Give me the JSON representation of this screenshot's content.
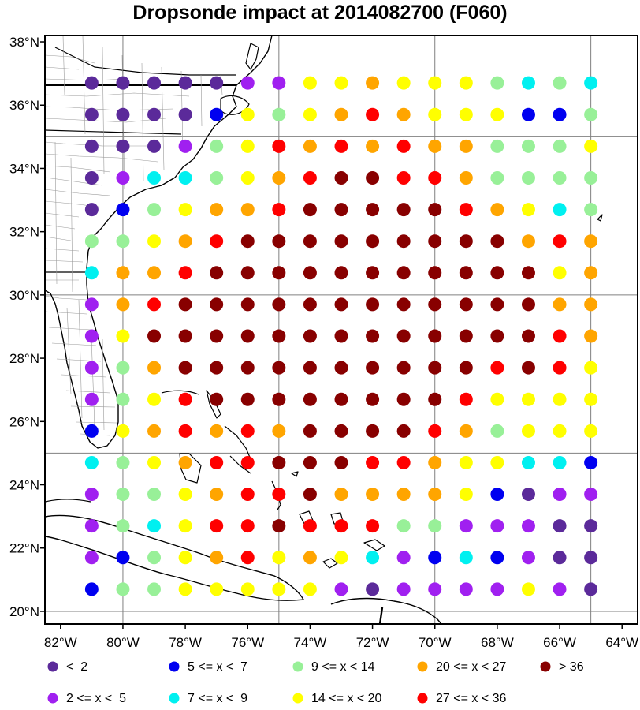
{
  "title": "Dropsonde impact at 2014082700 (F060)",
  "axes": {
    "lat_labels": [
      "20°N",
      "22°N",
      "24°N",
      "26°N",
      "28°N",
      "30°N",
      "32°N",
      "34°N",
      "36°N",
      "38°N"
    ],
    "lon_labels": [
      "82°W",
      "80°W",
      "78°W",
      "76°W",
      "74°W",
      "72°W",
      "70°W",
      "68°W",
      "66°W",
      "64°W"
    ]
  },
  "colors": {
    "c0": "#5b2a9a",
    "c1": "#a020f0",
    "c2": "#0000f0",
    "c3": "#00f0f0",
    "c4": "#98f098",
    "c5": "#ffff00",
    "c6": "#ffa500",
    "c7": "#ff0000",
    "c8": "#880000"
  },
  "legend": [
    {
      "cls": "c0",
      "label": "<  2"
    },
    {
      "cls": "c2",
      "label": "5 <= x <  7"
    },
    {
      "cls": "c4",
      "label": "9 <= x < 14"
    },
    {
      "cls": "c6",
      "label": "20 <= x < 27"
    },
    {
      "cls": "c8",
      "label": "> 36"
    },
    {
      "cls": "c1",
      "label": "2 <= x <  5"
    },
    {
      "cls": "c3",
      "label": "7 <= x <  9"
    },
    {
      "cls": "c5",
      "label": "14 <= x < 20"
    },
    {
      "cls": "c7",
      "label": "27 <= x < 36"
    }
  ],
  "chart_data": {
    "type": "scatter",
    "title": "Dropsonde impact at 2014082700 (F060)",
    "lon_range": [
      -82.5,
      -63.5
    ],
    "lat_range": [
      19.6,
      38.2
    ],
    "grid_lons": [
      -81,
      -80,
      -79,
      -78,
      -77,
      -76,
      -75,
      -74,
      -73,
      -72,
      -71,
      -70,
      -69,
      -68,
      -67,
      -66,
      -65
    ],
    "grid_lats": [
      36.7,
      35.7,
      34.7,
      33.7,
      32.7,
      31.7,
      30.7,
      29.7,
      28.7,
      27.7,
      26.7,
      25.7,
      24.7,
      23.7,
      22.7,
      21.7,
      20.7
    ],
    "classes_by_row": [
      "c0 c0 c0 c0 c0 c1 c1 c5 c5 c6 c5 c5 c5 c4 c3 c4 c3",
      "c0 c0 c0 c0 c2 c5 c4 c5 c6 c7 c6 c5 c5 c5 c2 c2 c4",
      "c0 c0 c0 c1 c4 c5 c7 c6 c7 c6 c7 c6 c6 c4 c4 c4 c5",
      "c0 c1 c3 c3 c4 c5 c6 c7 c8 c8 c7 c7 c6 c4 c4 c4 c4",
      "c0 c2 c4 c5 c6 c6 c7 c8 c8 c8 c8 c8 c7 c6 c5 c3 c4",
      "c4 c4 c5 c6 c7 c8 c8 c8 c8 c8 c8 c8 c8 c8 c6 c7 c6",
      "c3 c6 c6 c7 c8 c8 c8 c8 c8 c8 c8 c8 c8 c8 c8 c5 c6",
      "c1 c6 c7 c8 c8 c8 c8 c8 c8 c8 c8 c8 c8 c8 c8 c6 c6",
      "c1 c5 c8 c8 c8 c8 c8 c8 c8 c8 c8 c8 c8 c8 c8 c7 c6",
      "c1 c4 c6 c8 c8 c8 c8 c8 c8 c8 c8 c8 c8 c7 c8 c7 c5",
      "c1 c4 c5 c7 c8 c8 c8 c8 c8 c8 c8 c8 c7 c5 c5 c5 c5",
      "c2 c5 c6 c7 c6 c7 c6 c8 c8 c8 c8 c7 c6 c4 c5 c5 c5",
      "c3 c4 c5 c6 c7 c7 c8 c8 c8 c7 c7 c6 c5 c5 c3 c3 c2",
      "c1 c4 c4 c5 c6 c7 c7 c8 c6 c6 c6 c6 c5 c2 c0 c1 c1",
      "c1 c4 c3 c5 c7 c7 c8 c7 c7 c7 c4 c4 c1 c1 c1 c0 c0",
      "c1 c2 c4 c5 c6 c7 c5 c6 c5 c3 c1 c2 c3 c2 c1 c0 c0",
      "c2 c4 c4 c5 c5 c5 c5 c5 c1 c0 c1 c1 c1 c1 c5 c1 c0"
    ]
  }
}
